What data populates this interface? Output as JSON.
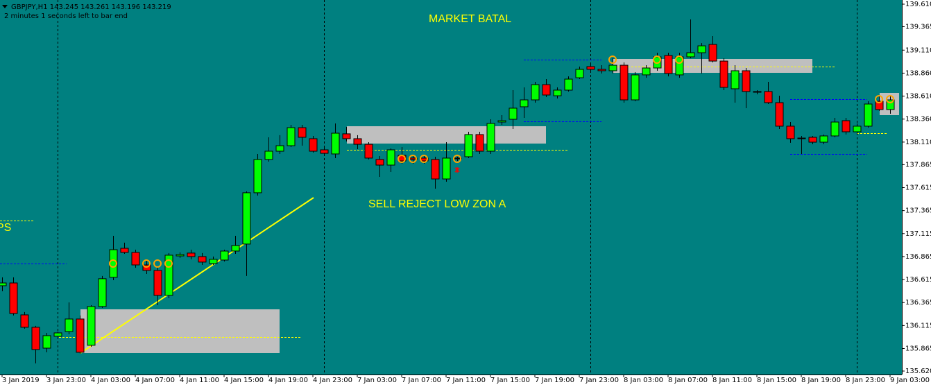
{
  "chart_data": {
    "type": "candlestick",
    "title": "GBPJPY,H1  143.245 143.261 143.196 143.219",
    "subtitle": "2 minutes 1 seconds left to bar end",
    "annotations": [
      "MARKET BATAL",
      "SELL REJECT LOW ZON A",
      "PS"
    ],
    "up_color": "#00ff00",
    "down_color": "#ff0000",
    "background": "#008080",
    "grid": false,
    "categories": [
      "3 Jan 2019",
      null,
      null,
      null,
      "3 Jan 23:00",
      null,
      null,
      null,
      "4 Jan 03:00",
      null,
      null,
      null,
      "4 Jan 07:00",
      null,
      null,
      null,
      "4 Jan 11:00",
      null,
      null,
      null,
      "4 Jan 15:00",
      null,
      null,
      null,
      "4 Jan 19:00",
      null,
      null,
      null,
      "4 Jan 23:00",
      null,
      null,
      null,
      "7 Jan 03:00",
      null,
      null,
      null,
      "7 Jan 07:00",
      null,
      null,
      null,
      "7 Jan 11:00",
      null,
      null,
      null,
      "7 Jan 15:00",
      null,
      null,
      null,
      "7 Jan 19:00",
      null,
      null,
      null,
      "7 Jan 23:00",
      null,
      null,
      null,
      "8 Jan 03:00",
      null,
      null,
      null,
      "8 Jan 07:00",
      null,
      null,
      null,
      "8 Jan 11:00",
      null,
      null,
      null,
      "8 Jan 15:00",
      null,
      null,
      null,
      "8 Jan 19:00",
      null,
      null,
      null,
      "8 Jan 23:00",
      null,
      null,
      null,
      "9 Jan 03:00"
    ],
    "open": [
      136.548,
      136.578,
      136.231,
      136.096,
      135.869,
      135.998,
      136.05,
      136.186,
      135.9,
      136.322,
      136.639,
      136.955,
      136.91,
      136.774,
      136.714,
      136.443,
      136.872,
      136.903,
      136.865,
      136.789,
      136.827,
      136.925,
      137.001,
      137.559,
      137.921,
      138.011,
      138.071,
      138.267,
      138.147,
      138.026,
      137.981,
      138.2,
      138.147,
      138.086,
      137.921,
      137.86,
      137.966,
      137.936,
      137.936,
      137.921,
      137.709,
      137.936,
      137.951,
      138.192,
      138.011,
      138.328,
      138.358,
      138.494,
      138.569,
      138.735,
      138.614,
      138.675,
      138.81,
      138.931,
      138.901,
      138.886,
      138.946,
      138.569,
      138.841,
      138.916,
      139.052,
      138.841,
      139.037,
      139.082,
      139.172,
      138.991,
      138.69,
      138.886,
      138.66,
      138.66,
      138.539,
      138.283,
      138.154,
      138.162,
      138.109,
      138.177,
      138.343,
      138.222,
      138.283,
      138.554,
      138.464
    ],
    "high": [
      136.639,
      136.639,
      136.262,
      136.111,
      136.035,
      136.05,
      136.367,
      136.224,
      136.337,
      136.654,
      137.091,
      137.016,
      136.94,
      136.827,
      136.752,
      136.903,
      136.91,
      136.94,
      136.903,
      136.865,
      136.94,
      137.091,
      137.574,
      137.981,
      138.162,
      138.185,
      138.298,
      138.298,
      138.177,
      138.071,
      138.313,
      138.275,
      138.185,
      138.109,
      137.958,
      138.041,
      138.056,
      137.966,
      137.966,
      137.951,
      138.109,
      137.951,
      138.222,
      138.222,
      138.358,
      138.403,
      138.675,
      138.705,
      138.765,
      138.795,
      138.705,
      138.825,
      138.931,
      138.961,
      138.946,
      139.022,
      138.976,
      138.871,
      138.946,
      139.082,
      139.082,
      139.082,
      139.444,
      139.187,
      139.263,
      139.022,
      138.946,
      138.916,
      138.675,
      138.765,
      138.614,
      138.328,
      138.177,
      138.177,
      138.192,
      138.373,
      138.373,
      138.313,
      138.554,
      138.614,
      138.614
    ],
    "low": [
      136.488,
      136.224,
      136.081,
      135.703,
      135.824,
      135.975,
      136.02,
      135.809,
      135.884,
      136.307,
      136.608,
      136.895,
      136.744,
      136.676,
      136.337,
      136.412,
      136.85,
      136.835,
      136.774,
      136.774,
      136.812,
      136.895,
      136.654,
      137.528,
      137.898,
      137.981,
      138.056,
      138.071,
      137.996,
      137.966,
      137.936,
      138.117,
      138.034,
      137.921,
      137.732,
      137.785,
      137.875,
      137.875,
      137.875,
      137.604,
      137.679,
      137.905,
      137.936,
      137.981,
      137.981,
      138.298,
      138.252,
      138.373,
      138.539,
      138.599,
      138.584,
      138.66,
      138.795,
      138.871,
      138.856,
      138.856,
      138.539,
      138.554,
      138.81,
      138.886,
      138.825,
      138.81,
      139.022,
      138.856,
      138.976,
      138.675,
      138.539,
      138.479,
      138.629,
      138.524,
      138.252,
      138.102,
      137.981,
      138.086,
      138.086,
      138.162,
      138.192,
      138.192,
      138.267,
      138.448,
      138.418
    ],
    "close": [
      136.578,
      136.246,
      136.096,
      135.854,
      136.005,
      136.035,
      136.186,
      135.824,
      136.322,
      136.624,
      136.94,
      136.91,
      136.774,
      136.714,
      136.443,
      136.88,
      136.887,
      136.865,
      136.805,
      136.835,
      136.925,
      136.985,
      137.559,
      137.921,
      138.011,
      138.071,
      138.267,
      138.162,
      138.011,
      137.988,
      138.207,
      138.147,
      138.086,
      137.936,
      137.86,
      138.026,
      137.905,
      137.921,
      137.905,
      137.709,
      137.936,
      137.928,
      138.192,
      138.011,
      138.313,
      138.343,
      138.479,
      138.569,
      138.735,
      138.622,
      138.675,
      138.795,
      138.901,
      138.901,
      138.886,
      138.946,
      138.569,
      138.841,
      138.916,
      139.037,
      138.856,
      139.037,
      139.082,
      139.157,
      138.991,
      138.705,
      138.886,
      138.66,
      138.652,
      138.539,
      138.283,
      138.147,
      138.147,
      138.109,
      138.177,
      138.328,
      138.222,
      138.283,
      138.524,
      138.464,
      138.569
    ],
    "ylim": [
      135.62,
      139.61
    ],
    "yticks": [
      {
        "value": 139.61,
        "label": "139.610"
      },
      {
        "value": 139.365,
        "label": "139.365"
      },
      {
        "value": 139.11,
        "label": "139.110"
      },
      {
        "value": 138.86,
        "label": "138.860"
      },
      {
        "value": 138.61,
        "label": "138.610"
      },
      {
        "value": 138.36,
        "label": "138.360"
      },
      {
        "value": 138.11,
        "label": "138.110"
      },
      {
        "value": 137.865,
        "label": "137.865"
      },
      {
        "value": 137.615,
        "label": "137.615"
      },
      {
        "value": 137.365,
        "label": "137.365"
      },
      {
        "value": 137.115,
        "label": "137.115"
      },
      {
        "value": 136.865,
        "label": "136.865"
      },
      {
        "value": 136.615,
        "label": "136.615"
      },
      {
        "value": 136.365,
        "label": "136.365"
      },
      {
        "value": 136.115,
        "label": "136.115"
      },
      {
        "value": 135.865,
        "label": "135.865"
      },
      {
        "value": 135.62,
        "label": "135.620"
      }
    ]
  }
}
